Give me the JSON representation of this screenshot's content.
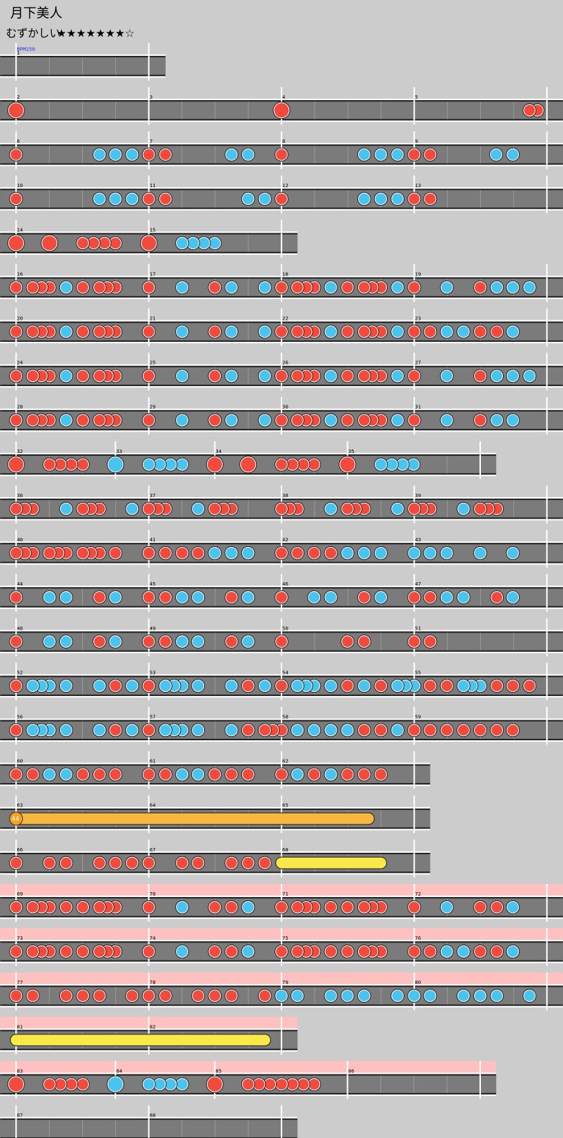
{
  "header": {
    "title": "月下美人",
    "difficulty": "むずかしい",
    "stars": "★★★★★★★☆"
  },
  "bpm": "BPM150",
  "rows": [
    [
      1
    ],
    [
      2,
      3,
      4,
      5
    ],
    [
      6,
      7,
      8,
      9
    ],
    [
      10,
      11,
      12,
      13
    ],
    [
      14,
      15
    ],
    [
      16,
      17,
      18,
      19
    ],
    [
      20,
      21,
      22,
      23
    ],
    [
      24,
      25,
      26,
      27
    ],
    [
      28,
      29,
      30,
      31
    ],
    [
      32,
      33,
      34,
      35
    ],
    [
      36,
      37,
      38,
      39
    ],
    [
      40,
      41,
      42,
      43
    ],
    [
      44,
      45,
      46,
      47
    ],
    [
      48,
      49,
      50,
      51
    ],
    [
      52,
      53,
      54,
      55
    ],
    [
      56,
      57,
      58,
      59
    ],
    [
      60,
      61,
      62
    ],
    [
      63,
      64,
      65
    ],
    [
      66,
      67,
      68
    ],
    [
      69,
      70,
      71,
      72
    ],
    [
      73,
      74,
      75,
      76
    ],
    [
      77,
      78,
      79,
      80
    ],
    [
      81,
      82
    ],
    [
      83,
      84,
      85,
      86
    ],
    [
      87,
      88
    ]
  ],
  "balloon_hits": 44
}
